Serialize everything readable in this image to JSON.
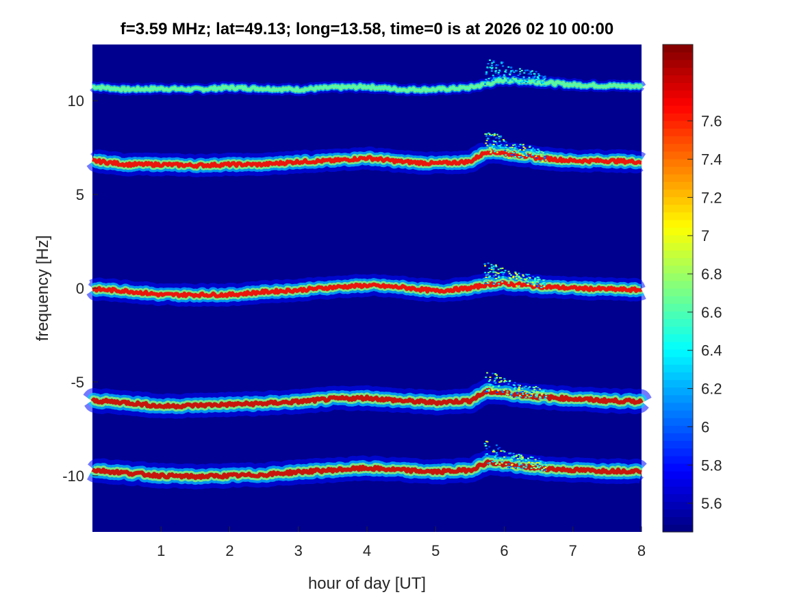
{
  "chart_data": {
    "type": "heatmap",
    "title": "f=3.59 MHz;  lat=49.13; long=13.58, time=0 is at 2026 02 10 00:00",
    "xlabel": "hour of day [UT]",
    "ylabel": "frequency [Hz]",
    "xlim": [
      0,
      8
    ],
    "ylim": [
      -13,
      13
    ],
    "xticks": [
      1,
      2,
      3,
      4,
      5,
      6,
      7,
      8
    ],
    "yticks": [
      -10,
      -5,
      0,
      5,
      10
    ],
    "colormap": "jet",
    "colorbar": {
      "clim": [
        5.45,
        8.0
      ],
      "ticks": [
        "5.6",
        "5.8",
        "6",
        "6.2",
        "6.4",
        "6.6",
        "6.8",
        "7",
        "7.2",
        "7.4",
        "7.6"
      ]
    },
    "background_color": "#00008f",
    "hours": [
      0,
      0.5,
      1,
      1.5,
      2,
      2.5,
      3,
      3.5,
      4,
      4.5,
      5,
      5.5,
      5.75,
      6,
      6.5,
      7,
      7.5,
      8
    ],
    "bands": [
      {
        "name": "band +10.6 Hz",
        "peak": 6.6,
        "width_hz": 0.25,
        "center_hz": [
          10.75,
          10.6,
          10.65,
          10.6,
          10.7,
          10.65,
          10.6,
          10.7,
          10.75,
          10.6,
          10.6,
          10.7,
          10.9,
          11.1,
          11.0,
          10.85,
          10.8,
          10.77
        ]
      },
      {
        "name": "band +6.7 Hz",
        "peak": 7.7,
        "width_hz": 0.5,
        "center_hz": [
          6.8,
          6.6,
          6.6,
          6.55,
          6.6,
          6.6,
          6.75,
          6.8,
          6.95,
          6.75,
          6.65,
          6.75,
          7.3,
          7.2,
          6.95,
          6.8,
          6.8,
          6.74
        ]
      },
      {
        "name": "band 0 Hz",
        "peak": 7.7,
        "width_hz": 0.5,
        "center_hz": [
          -0.05,
          -0.15,
          -0.35,
          -0.35,
          -0.35,
          -0.2,
          -0.1,
          0.05,
          0.15,
          0.05,
          -0.15,
          0.0,
          0.2,
          0.25,
          0.1,
          0.0,
          -0.05,
          -0.1
        ]
      },
      {
        "name": "band -6 Hz",
        "peak": 7.8,
        "width_hz": 0.55,
        "center_hz": [
          -6.0,
          -6.1,
          -6.3,
          -6.25,
          -6.2,
          -6.15,
          -6.05,
          -5.9,
          -5.85,
          -6.0,
          -6.1,
          -6.0,
          -5.5,
          -5.6,
          -5.8,
          -5.9,
          -6.0,
          -6.05
        ]
      },
      {
        "name": "band -9.8 Hz",
        "peak": 7.8,
        "width_hz": 0.55,
        "center_hz": [
          -9.7,
          -9.85,
          -10.0,
          -10.05,
          -10.0,
          -9.95,
          -9.8,
          -9.7,
          -9.6,
          -9.7,
          -9.8,
          -9.7,
          -9.3,
          -9.4,
          -9.6,
          -9.7,
          -9.75,
          -9.75
        ]
      }
    ],
    "disturbance": {
      "hour_start": 5.7,
      "hour_end": 6.6,
      "spread_up_hz": 1.2
    }
  }
}
